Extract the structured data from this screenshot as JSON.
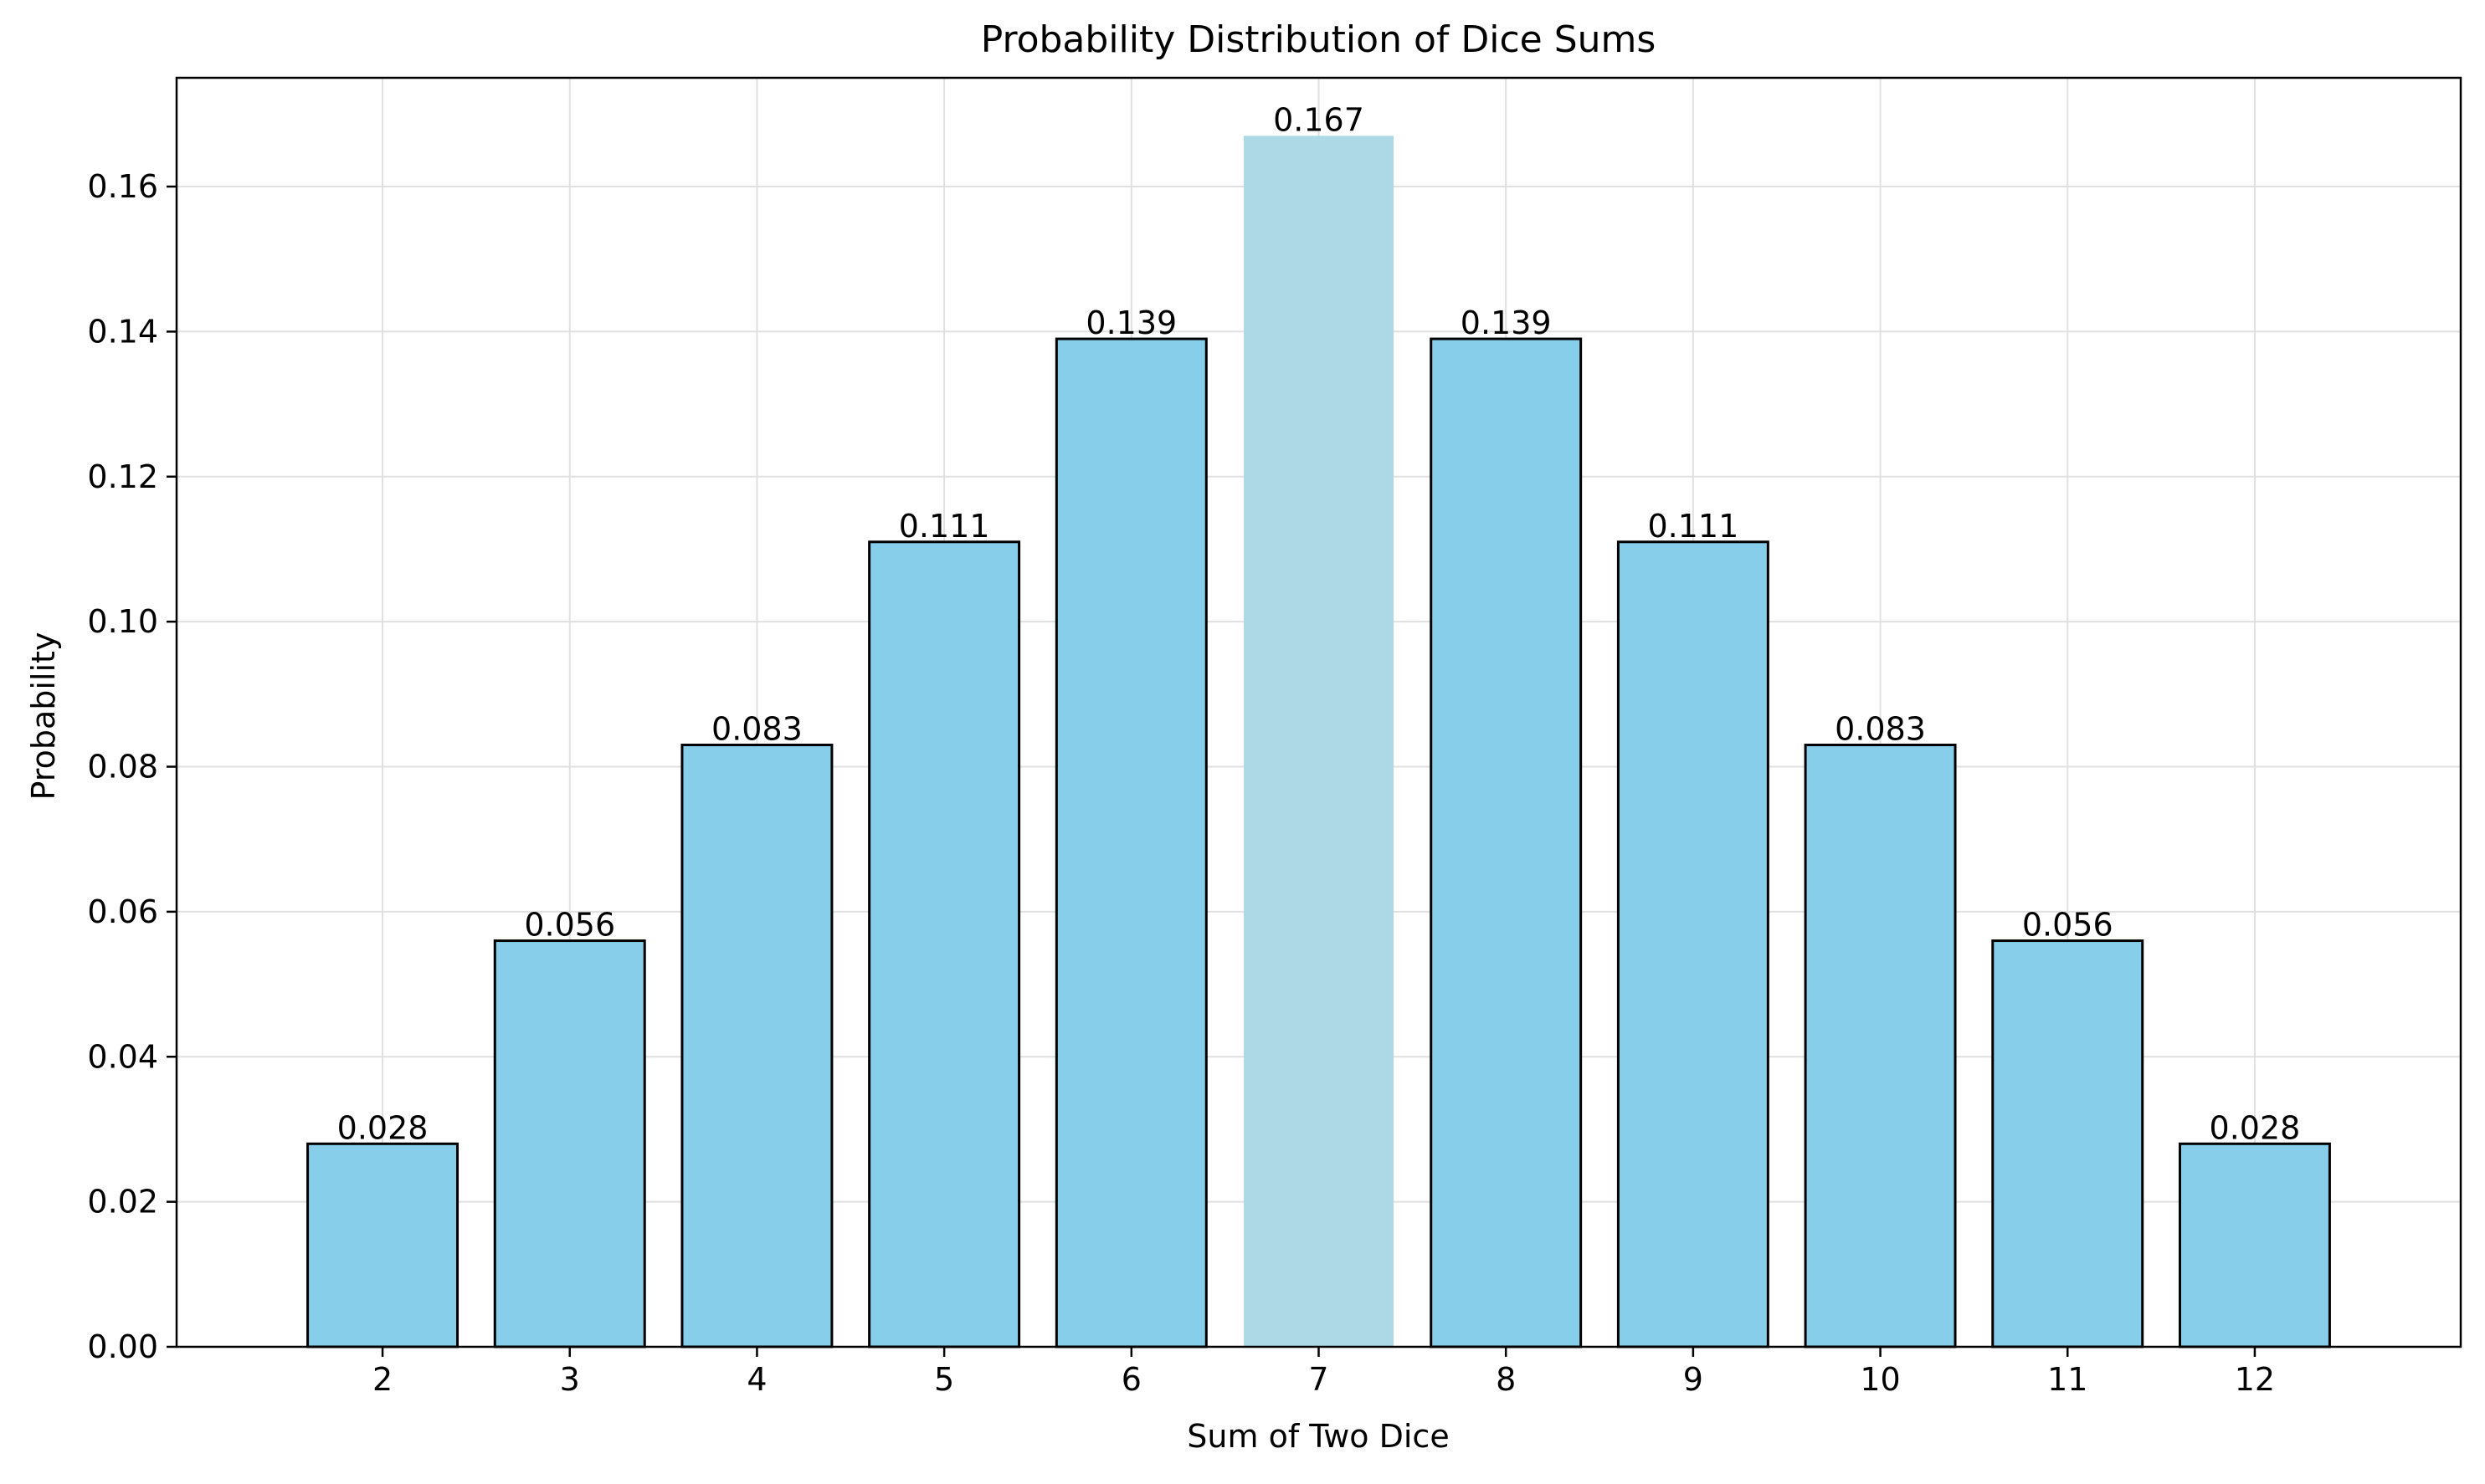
{
  "chart_data": {
    "type": "bar",
    "title": "Probability Distribution of Dice Sums",
    "xlabel": "Sum of Two Dice",
    "ylabel": "Probability",
    "categories": [
      "2",
      "3",
      "4",
      "5",
      "6",
      "7",
      "8",
      "9",
      "10",
      "11",
      "12"
    ],
    "values": [
      0.028,
      0.056,
      0.083,
      0.111,
      0.139,
      0.167,
      0.139,
      0.111,
      0.083,
      0.056,
      0.028
    ],
    "value_labels": [
      "0.028",
      "0.056",
      "0.083",
      "0.111",
      "0.139",
      "0.167",
      "0.139",
      "0.111",
      "0.083",
      "0.056",
      "0.028"
    ],
    "highlight_index": 5,
    "ylim": [
      0,
      0.175
    ],
    "yticks": [
      0,
      0.02,
      0.04,
      0.06,
      0.08,
      0.1,
      0.12,
      0.14,
      0.16
    ],
    "ytick_labels": [
      "0.00",
      "0.02",
      "0.04",
      "0.06",
      "0.08",
      "0.10",
      "0.12",
      "0.14",
      "0.16"
    ],
    "grid": true,
    "colors": {
      "bar": "#87ceeb",
      "highlight": "#add8e6",
      "edge": "#000000",
      "grid": "#e0e0e0"
    }
  }
}
